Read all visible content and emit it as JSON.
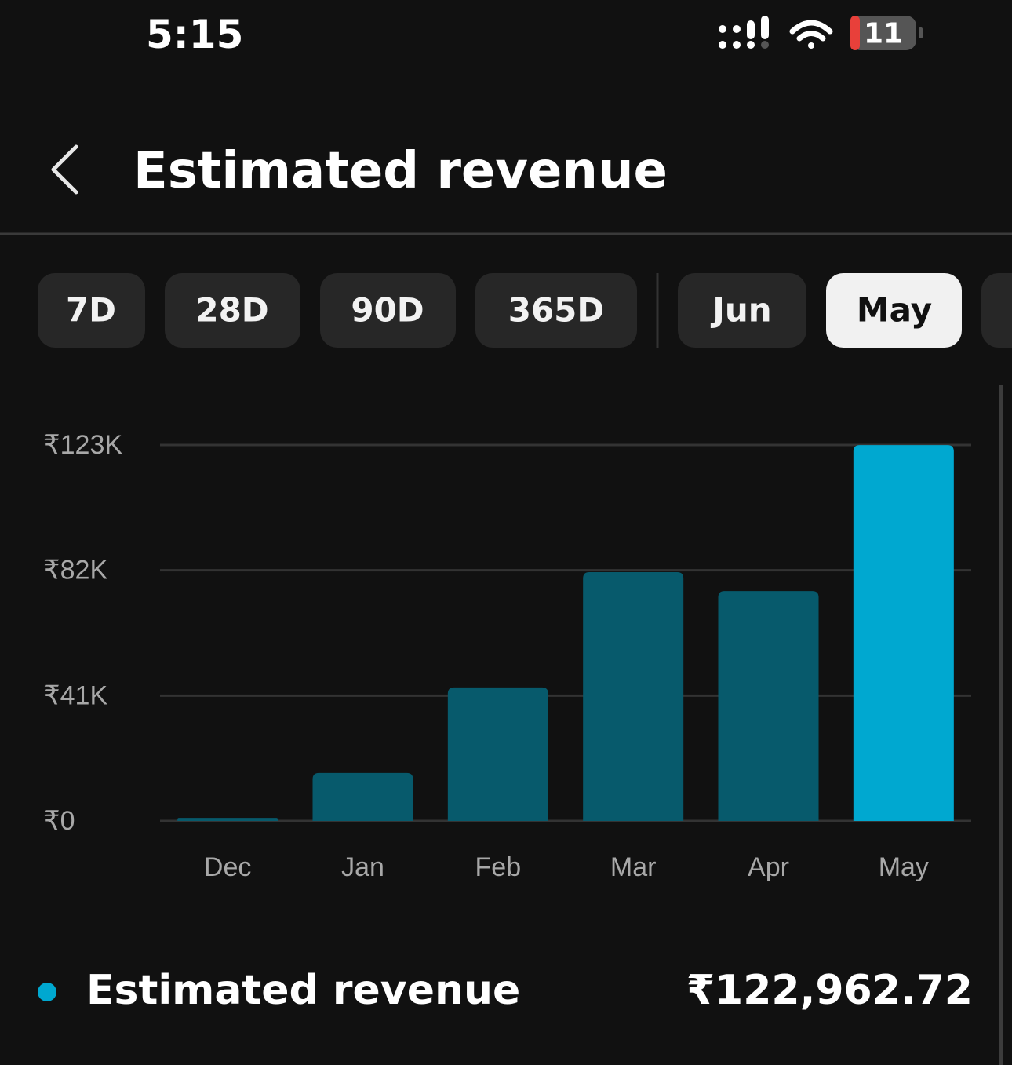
{
  "status_bar": {
    "time": "5:15",
    "battery": "11"
  },
  "header": {
    "title": "Estimated revenue"
  },
  "tabs": [
    "7D",
    "28D",
    "90D",
    "365D",
    "Jun",
    "May"
  ],
  "chart_data": {
    "type": "bar",
    "categories": [
      "Dec",
      "Jan",
      "Feb",
      "Mar",
      "Apr",
      "May"
    ],
    "values": [
      1000,
      15700,
      43700,
      81400,
      75200,
      122962.72
    ],
    "colors": [
      "#075a6c",
      "#075a6c",
      "#075a6c",
      "#075a6c",
      "#075a6c",
      "#00a8d0"
    ],
    "ylim": [
      0,
      123000
    ],
    "yticks": [
      {
        "value": 0,
        "label": "₹0"
      },
      {
        "value": 41000,
        "label": "₹41K"
      },
      {
        "value": 82000,
        "label": "₹82K"
      },
      {
        "value": 123000,
        "label": "₹123K"
      }
    ],
    "grid": true
  },
  "summary": {
    "label": "Estimated revenue",
    "value": "₹122,962.72",
    "color": "#00a8d0"
  }
}
